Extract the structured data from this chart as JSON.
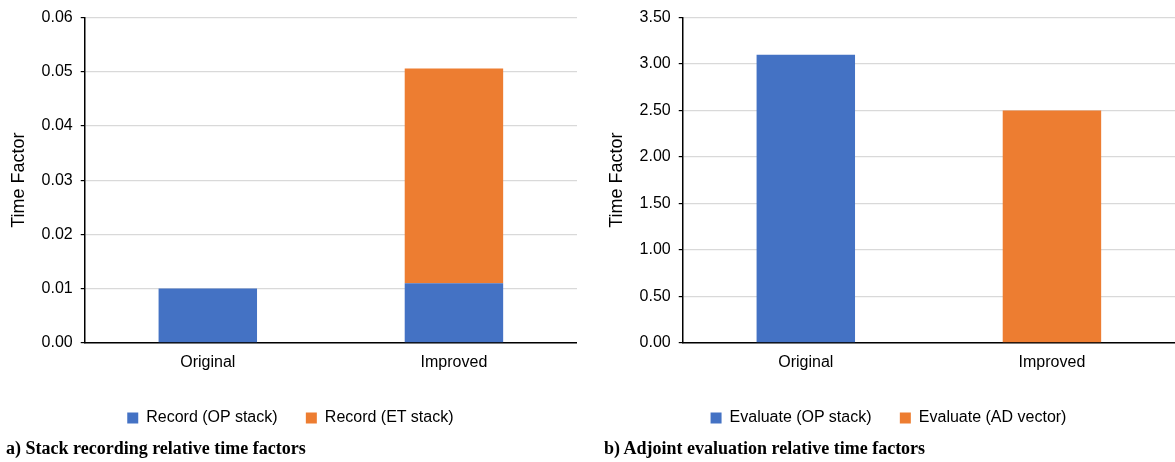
{
  "chart_data": [
    {
      "type": "bar",
      "title": "a) Stack recording relative time factors",
      "ylabel": "Time Factor",
      "categories": [
        "Original",
        "Improved"
      ],
      "series": [
        {
          "name": "Record (OP stack)",
          "color": "#4472c4",
          "values": [
            0.01,
            0.011
          ]
        },
        {
          "name": "Record (ET stack)",
          "color": "#ed7d31",
          "values": [
            null,
            0.0396
          ]
        }
      ],
      "stacked": true,
      "ylim": [
        0,
        0.06
      ],
      "yticks": [
        {
          "value": 0,
          "label": "0.00"
        },
        0.01,
        0.02,
        0.03,
        0.04,
        0.05,
        0.06
      ],
      "grid": "y",
      "legend": "bottom"
    },
    {
      "type": "bar",
      "title": "b) Adjoint evaluation relative time factors",
      "ylabel": "Time Factor",
      "categories": [
        "Original",
        "Improved"
      ],
      "series": [
        {
          "name": "Evaluate (OP stack)",
          "color": "#4472c4",
          "values": [
            3.1,
            null
          ]
        },
        {
          "name": "Evaluate (AD vector)",
          "color": "#ed7d31",
          "values": [
            null,
            2.5
          ]
        }
      ],
      "stacked": true,
      "ylim": [
        0,
        3.5
      ],
      "yticks": [
        {
          "value": 0,
          "label": "0.00"
        },
        {
          "value": 0.5,
          "label": "0.50"
        },
        {
          "value": 1,
          "label": "1.00"
        },
        {
          "value": 1.5,
          "label": "1.50"
        },
        {
          "value": 2,
          "label": "2.00"
        },
        {
          "value": 2.5,
          "label": "2.50"
        },
        {
          "value": 3,
          "label": "3.00"
        },
        {
          "value": 3.5,
          "label": "3.50"
        }
      ],
      "grid": "y",
      "legend": "bottom"
    }
  ]
}
